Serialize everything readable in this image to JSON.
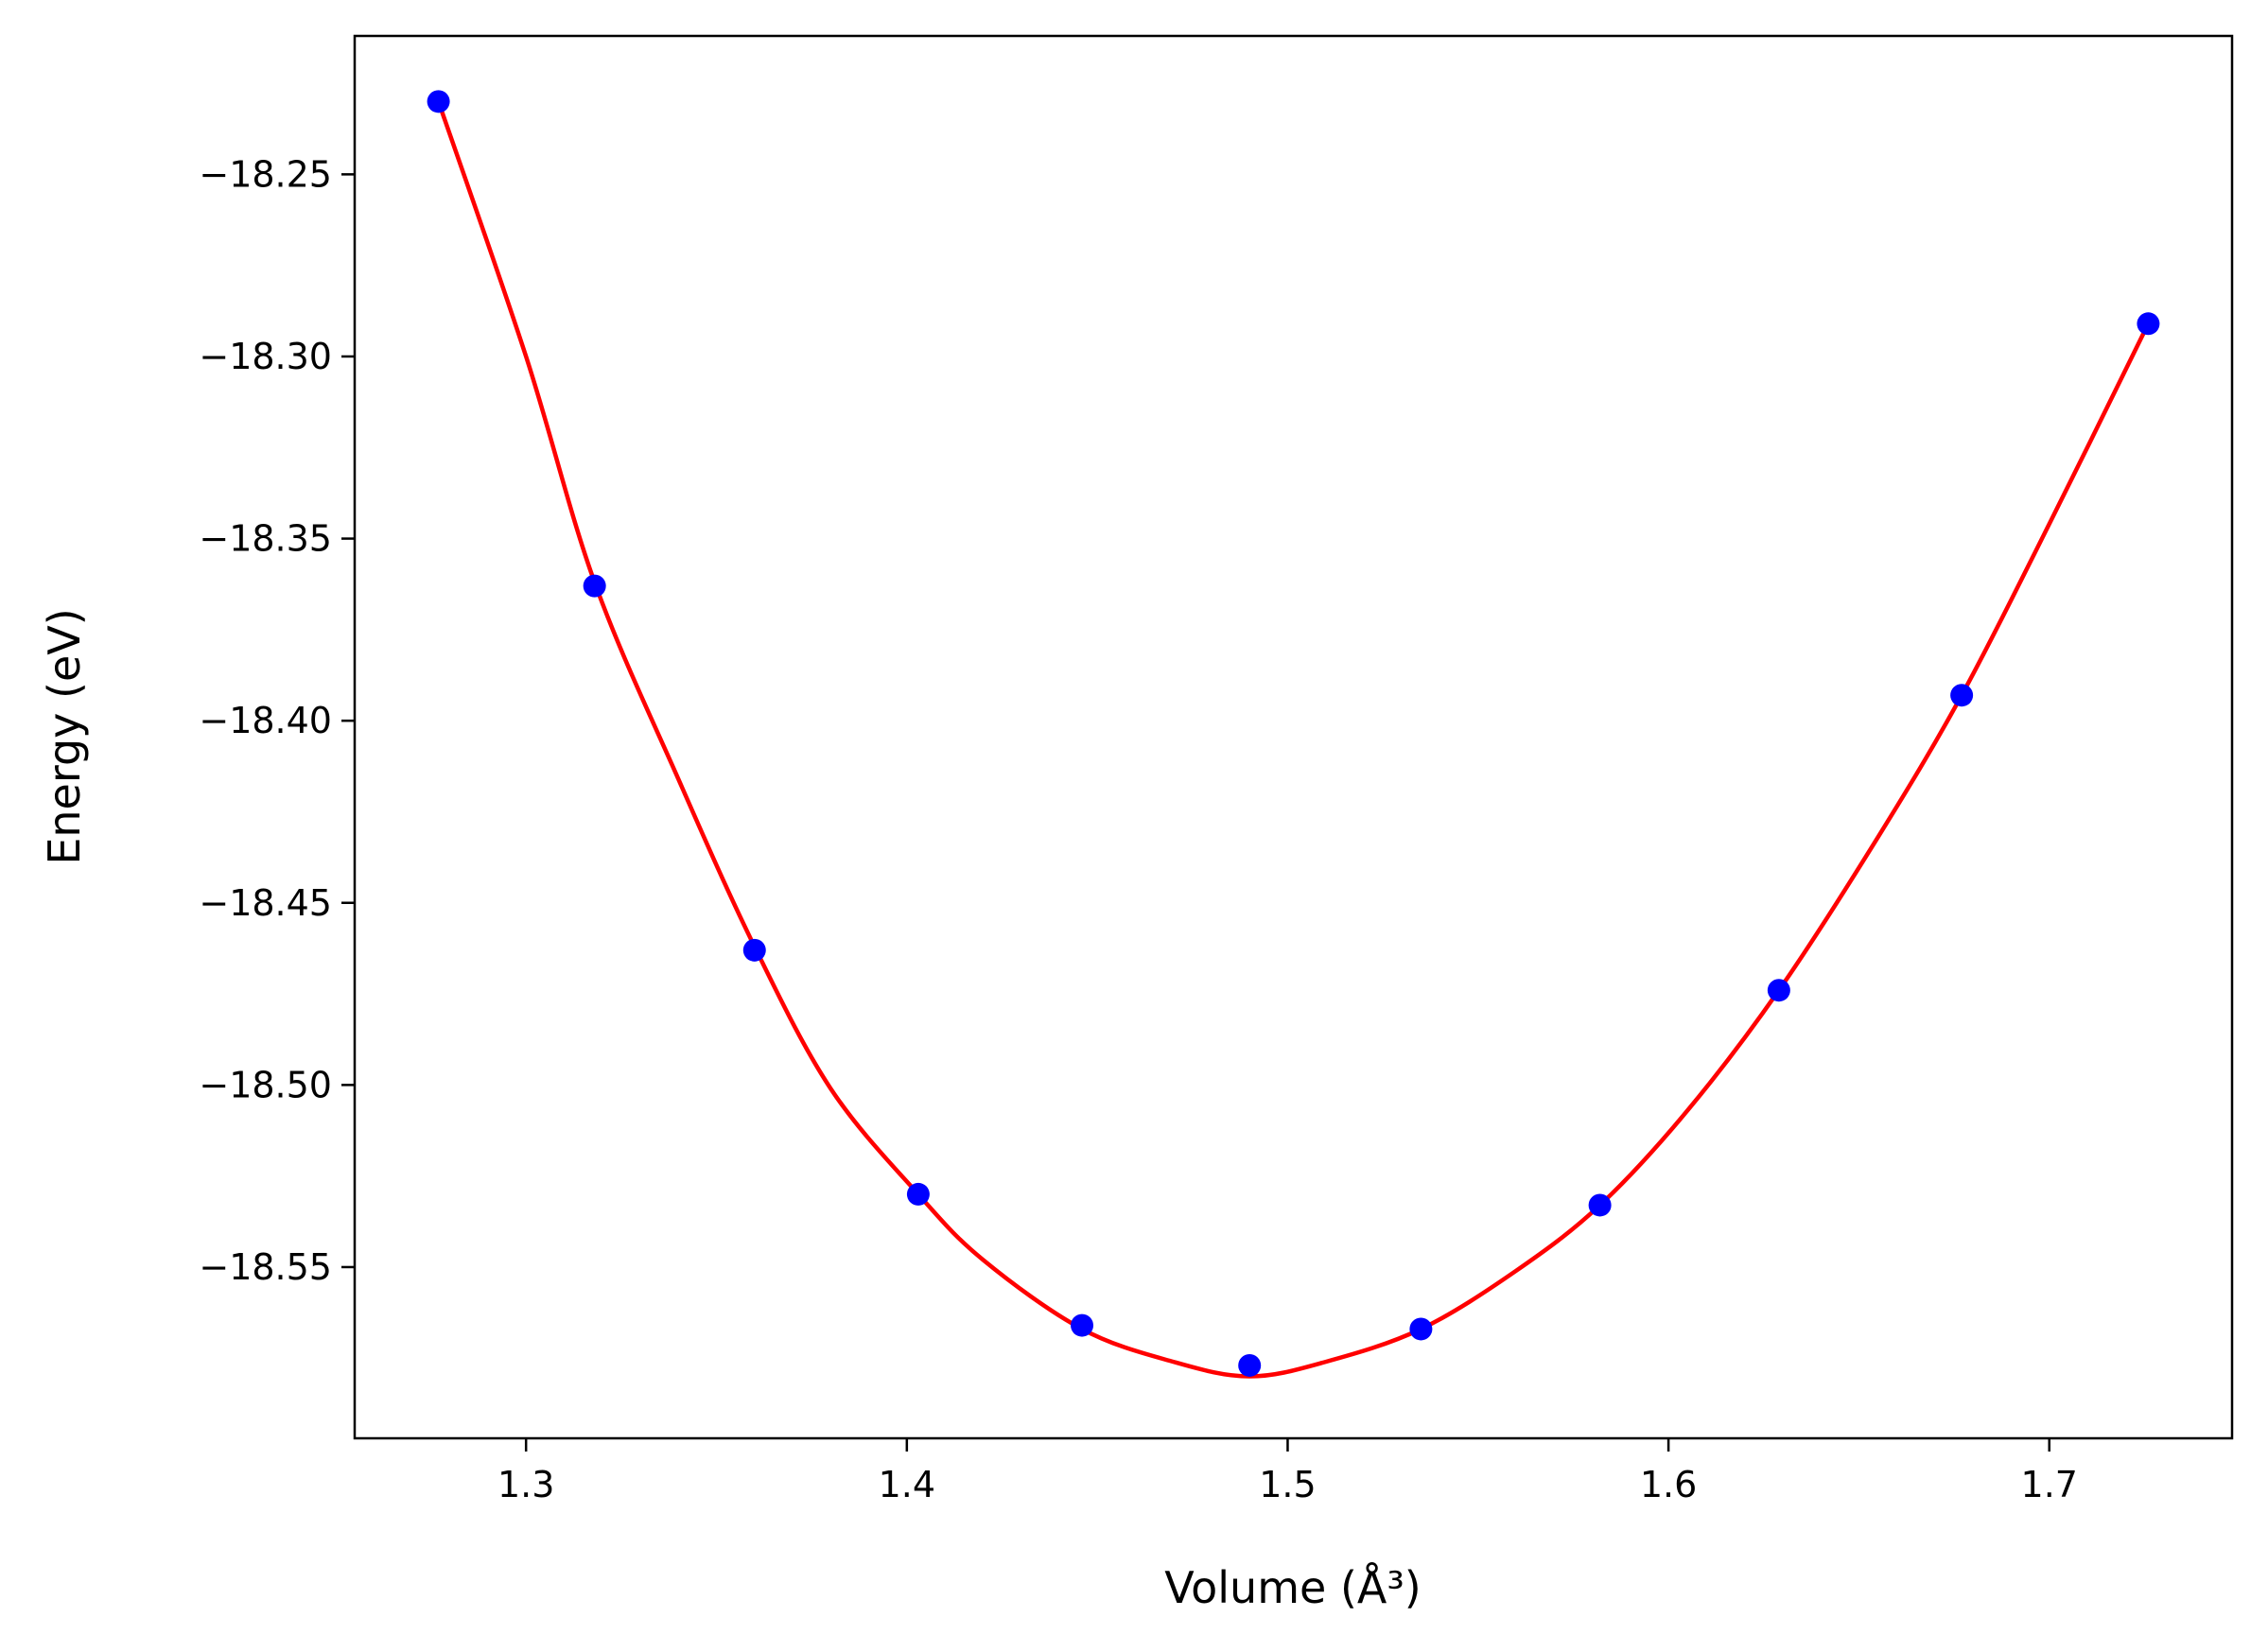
{
  "chart_data": {
    "type": "scatter",
    "title": "",
    "xlabel": "Volume (Å³)",
    "ylabel": "Energy (eV)",
    "xlim": [
      1.255,
      1.748
    ],
    "ylim": [
      -18.597,
      -18.212
    ],
    "xticks": [
      1.3,
      1.4,
      1.5,
      1.6,
      1.7
    ],
    "xtick_labels": [
      "1.3",
      "1.4",
      "1.5",
      "1.6",
      "1.7"
    ],
    "yticks": [
      -18.25,
      -18.3,
      -18.35,
      -18.4,
      -18.45,
      -18.5,
      -18.55
    ],
    "ytick_labels": [
      "−18.25",
      "−18.30",
      "−18.35",
      "−18.40",
      "−18.45",
      "−18.50",
      "−18.55"
    ],
    "grid": false,
    "series": [
      {
        "kind": "points",
        "color": "#0000ff",
        "x": [
          1.277,
          1.318,
          1.36,
          1.403,
          1.446,
          1.49,
          1.535,
          1.582,
          1.629,
          1.677,
          1.726
        ],
        "y": [
          -18.23,
          -18.363,
          -18.463,
          -18.53,
          -18.566,
          -18.577,
          -18.567,
          -18.533,
          -18.474,
          -18.393,
          -18.291
        ]
      },
      {
        "kind": "fit-line",
        "color": "#ff0000",
        "x": [
          1.277,
          1.3,
          1.318,
          1.34,
          1.36,
          1.38,
          1.403,
          1.42,
          1.446,
          1.47,
          1.49,
          1.51,
          1.535,
          1.56,
          1.582,
          1.605,
          1.629,
          1.655,
          1.677,
          1.7,
          1.726
        ],
        "y": [
          -18.23,
          -18.3,
          -18.362,
          -18.416,
          -18.462,
          -18.501,
          -18.53,
          -18.548,
          -18.567,
          -18.576,
          -18.58,
          -18.576,
          -18.567,
          -18.551,
          -18.533,
          -18.507,
          -18.474,
          -18.432,
          -18.393,
          -18.346,
          -18.291
        ]
      }
    ]
  }
}
